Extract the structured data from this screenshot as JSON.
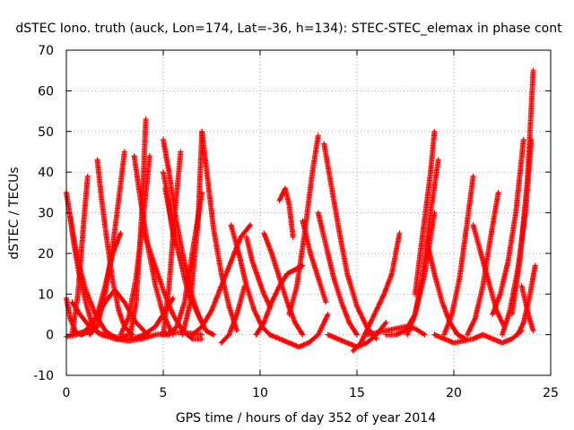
{
  "chart_data": {
    "type": "scatter",
    "title": "dSTEC Iono. truth (auck, Lon=174, Lat=-36, h=134): STEC-STEC_elemax in phase cont",
    "xlabel": "GPS time / hours of day 352 of year 2014",
    "ylabel": "dSTEC  / TECUs",
    "xlim": [
      0,
      25
    ],
    "ylim": [
      -10,
      70
    ],
    "xticks": [
      "0",
      "5",
      "10",
      "15",
      "20",
      "25"
    ],
    "yticks": [
      "-10",
      "0",
      "10",
      "20",
      "30",
      "40",
      "50",
      "60",
      "70"
    ],
    "grid": true,
    "marker": "+",
    "color": "#ff0000",
    "series": [
      {
        "x": [
          0.0,
          0.3,
          0.6,
          1.0,
          1.5,
          2.0,
          2.6,
          3.2
        ],
        "y": [
          35,
          26,
          18,
          11,
          5,
          1,
          -1,
          0
        ]
      },
      {
        "x": [
          0.0,
          0.2,
          0.5,
          0.8
        ],
        "y": [
          9,
          4,
          0.5,
          0
        ]
      },
      {
        "x": [
          0.0,
          0.5,
          1.0,
          1.5,
          2.0,
          2.5,
          3.0,
          3.6,
          4.2
        ],
        "y": [
          -0.5,
          0,
          1,
          4,
          8,
          11,
          8,
          3,
          0
        ]
      },
      {
        "x": [
          0.2,
          0.4,
          0.7,
          1.0,
          1.3,
          1.6,
          2.0
        ],
        "y": [
          29,
          22,
          14,
          8,
          3,
          0.5,
          0
        ]
      },
      {
        "x": [
          0.3,
          0.6,
          0.9,
          1.1
        ],
        "y": [
          0,
          10,
          28,
          39
        ]
      },
      {
        "x": [
          0.3,
          0.7,
          1.2,
          1.8,
          2.5,
          3.2,
          3.9,
          4.6,
          5.4,
          6.2,
          7.0
        ],
        "y": [
          8,
          5,
          2,
          0,
          -1,
          -1.5,
          -1,
          0,
          0.5,
          0.5,
          0
        ]
      },
      {
        "x": [
          0.8,
          1.2,
          1.6,
          2.0,
          2.4,
          2.8
        ],
        "y": [
          0,
          1,
          5,
          12,
          20,
          25
        ]
      },
      {
        "x": [
          1.6,
          1.8,
          2.1,
          2.4,
          2.7,
          3.0,
          3.4
        ],
        "y": [
          43,
          34,
          23,
          13,
          6,
          2,
          0
        ]
      },
      {
        "x": [
          1.2,
          1.6,
          2.0,
          2.4,
          2.8,
          3.0
        ],
        "y": [
          0,
          2,
          10,
          22,
          37,
          45
        ]
      },
      {
        "x": [
          2.2,
          2.8,
          3.4,
          4.0,
          4.6,
          5.0,
          5.5
        ],
        "y": [
          0,
          -1,
          -1,
          0,
          2,
          5,
          9
        ]
      },
      {
        "x": [
          2.8,
          3.2,
          3.6,
          4.0,
          4.3
        ],
        "y": [
          0,
          4,
          14,
          30,
          44
        ]
      },
      {
        "x": [
          3.3,
          3.6,
          3.9,
          4.1
        ],
        "y": [
          0,
          8,
          30,
          53
        ]
      },
      {
        "x": [
          3.5,
          3.8,
          4.2,
          4.6,
          5.0,
          5.5
        ],
        "y": [
          44,
          34,
          22,
          12,
          5,
          0
        ]
      },
      {
        "x": [
          4.0,
          4.5,
          5.0,
          5.5,
          6.0,
          6.5,
          7.0
        ],
        "y": [
          25,
          18,
          11,
          5,
          1,
          -1,
          -1
        ]
      },
      {
        "x": [
          5.0,
          5.3,
          5.6,
          6.0,
          6.4,
          6.8,
          7.2,
          7.6
        ],
        "y": [
          48,
          40,
          30,
          20,
          11,
          5,
          1,
          0
        ]
      },
      {
        "x": [
          5.0,
          5.2,
          5.4,
          5.6
        ],
        "y": [
          40,
          35,
          28,
          22
        ]
      },
      {
        "x": [
          5.1,
          5.5,
          6.0,
          6.3,
          6.7,
          7.0
        ],
        "y": [
          36,
          26,
          16,
          10,
          6,
          3
        ]
      },
      {
        "x": [
          5.0,
          5.3,
          5.6,
          5.9
        ],
        "y": [
          0,
          12,
          30,
          45
        ]
      },
      {
        "x": [
          4.9,
          5.3,
          5.7,
          6.1,
          6.5,
          7.0
        ],
        "y": [
          0,
          0,
          2,
          8,
          20,
          35
        ]
      },
      {
        "x": [
          6.0,
          6.4,
          6.8,
          7.0
        ],
        "y": [
          0,
          8,
          28,
          50
        ]
      },
      {
        "x": [
          7.0,
          7.3,
          7.6,
          8.0,
          8.4,
          8.8
        ],
        "y": [
          50,
          38,
          26,
          15,
          7,
          1
        ]
      },
      {
        "x": [
          6.5,
          7.0,
          7.5,
          8.0,
          8.5,
          9.0,
          9.5
        ],
        "y": [
          0,
          2,
          6,
          12,
          18,
          24,
          27
        ]
      },
      {
        "x": [
          8.0,
          8.4,
          8.8,
          9.2
        ],
        "y": [
          -2,
          0,
          5,
          12
        ]
      },
      {
        "x": [
          8.5,
          8.9,
          9.3,
          9.7,
          10.1,
          10.5
        ],
        "y": [
          27,
          20,
          12,
          6,
          2,
          0
        ]
      },
      {
        "x": [
          9.3,
          9.6,
          9.9,
          10.2,
          10.5
        ],
        "y": [
          24,
          18,
          14,
          10,
          7
        ]
      },
      {
        "x": [
          9.8,
          10.2,
          10.6,
          11.0,
          11.4,
          11.8,
          12.2
        ],
        "y": [
          0,
          3,
          8,
          12,
          15,
          16,
          17
        ]
      },
      {
        "x": [
          10.2,
          10.6,
          11.0,
          11.4,
          11.8,
          12.2
        ],
        "y": [
          25,
          20,
          14,
          8,
          3,
          0
        ]
      },
      {
        "x": [
          10.5,
          11.0,
          11.5,
          12.0,
          12.5,
          13.0,
          13.5
        ],
        "y": [
          0,
          -1,
          -2,
          -3,
          -2,
          0,
          5
        ]
      },
      {
        "x": [
          11.0,
          11.3,
          11.5,
          11.7
        ],
        "y": [
          33,
          36,
          32,
          24
        ]
      },
      {
        "x": [
          11.5,
          11.9,
          12.3,
          12.7,
          13.0
        ],
        "y": [
          5,
          12,
          25,
          40,
          49
        ]
      },
      {
        "x": [
          12.2,
          12.6,
          13.0,
          13.4
        ],
        "y": [
          28,
          20,
          14,
          8
        ]
      },
      {
        "x": [
          13.0,
          13.4,
          13.8,
          14.2,
          14.6,
          15.0
        ],
        "y": [
          30,
          22,
          14,
          8,
          3,
          0
        ]
      },
      {
        "x": [
          13.3,
          13.7,
          14.1,
          14.5,
          15.0,
          15.5,
          16.0
        ],
        "y": [
          47,
          36,
          25,
          15,
          7,
          2,
          -1
        ]
      },
      {
        "x": [
          13.5,
          14.0,
          14.5,
          15.0,
          15.5,
          16.0,
          16.5
        ],
        "y": [
          0,
          -1,
          -2,
          -3,
          -2,
          0,
          3
        ]
      },
      {
        "x": [
          14.8,
          15.2,
          15.6,
          16.0,
          16.4,
          16.8,
          17.2
        ],
        "y": [
          -4,
          -2,
          2,
          6,
          10,
          15,
          25
        ]
      },
      {
        "x": [
          15.5,
          16.0,
          16.5,
          17.0,
          17.5,
          18.0,
          18.5
        ],
        "y": [
          0,
          0.5,
          1,
          1.5,
          2,
          1.5,
          0
        ]
      },
      {
        "x": [
          16.5,
          17.0,
          17.5,
          18.0,
          18.5,
          19.0
        ],
        "y": [
          0,
          0,
          1,
          5,
          15,
          30
        ]
      },
      {
        "x": [
          17.6,
          18.0,
          18.4,
          18.8,
          19.2
        ],
        "y": [
          0,
          5,
          15,
          30,
          43
        ]
      },
      {
        "x": [
          18.0,
          18.4,
          18.8,
          19.0
        ],
        "y": [
          10,
          25,
          40,
          50
        ]
      },
      {
        "x": [
          18.6,
          19.0,
          19.4,
          19.8,
          20.2,
          20.6
        ],
        "y": [
          23,
          15,
          8,
          3,
          0,
          -1
        ]
      },
      {
        "x": [
          19.0,
          19.5,
          20.0,
          20.5,
          21.0,
          21.5
        ],
        "y": [
          0,
          -1,
          -2,
          -1.5,
          -1,
          0
        ]
      },
      {
        "x": [
          19.5,
          19.9,
          20.3,
          20.7,
          21.0
        ],
        "y": [
          0,
          5,
          14,
          28,
          39
        ]
      },
      {
        "x": [
          20.7,
          21.1,
          21.5,
          21.9,
          22.3
        ],
        "y": [
          0,
          4,
          12,
          24,
          35
        ]
      },
      {
        "x": [
          21.0,
          21.4,
          21.8,
          22.2,
          22.6
        ],
        "y": [
          27,
          20,
          13,
          6,
          2
        ]
      },
      {
        "x": [
          21.5,
          22.0,
          22.5,
          23.0,
          23.5
        ],
        "y": [
          0,
          -1,
          -2,
          -1,
          1
        ]
      },
      {
        "x": [
          22.0,
          22.4,
          22.8,
          23.2,
          23.6
        ],
        "y": [
          5,
          10,
          18,
          30,
          48
        ]
      },
      {
        "x": [
          22.5,
          22.9,
          23.3,
          23.7,
          24.0
        ],
        "y": [
          0,
          6,
          16,
          30,
          48
        ]
      },
      {
        "x": [
          23.0,
          23.4,
          23.8,
          24.1
        ],
        "y": [
          5,
          18,
          38,
          65
        ]
      },
      {
        "x": [
          23.3,
          23.6,
          23.9,
          24.2
        ],
        "y": [
          0,
          3,
          9,
          17
        ]
      },
      {
        "x": [
          23.5,
          23.7,
          23.9,
          24.1
        ],
        "y": [
          12,
          8,
          4,
          1
        ]
      }
    ]
  }
}
